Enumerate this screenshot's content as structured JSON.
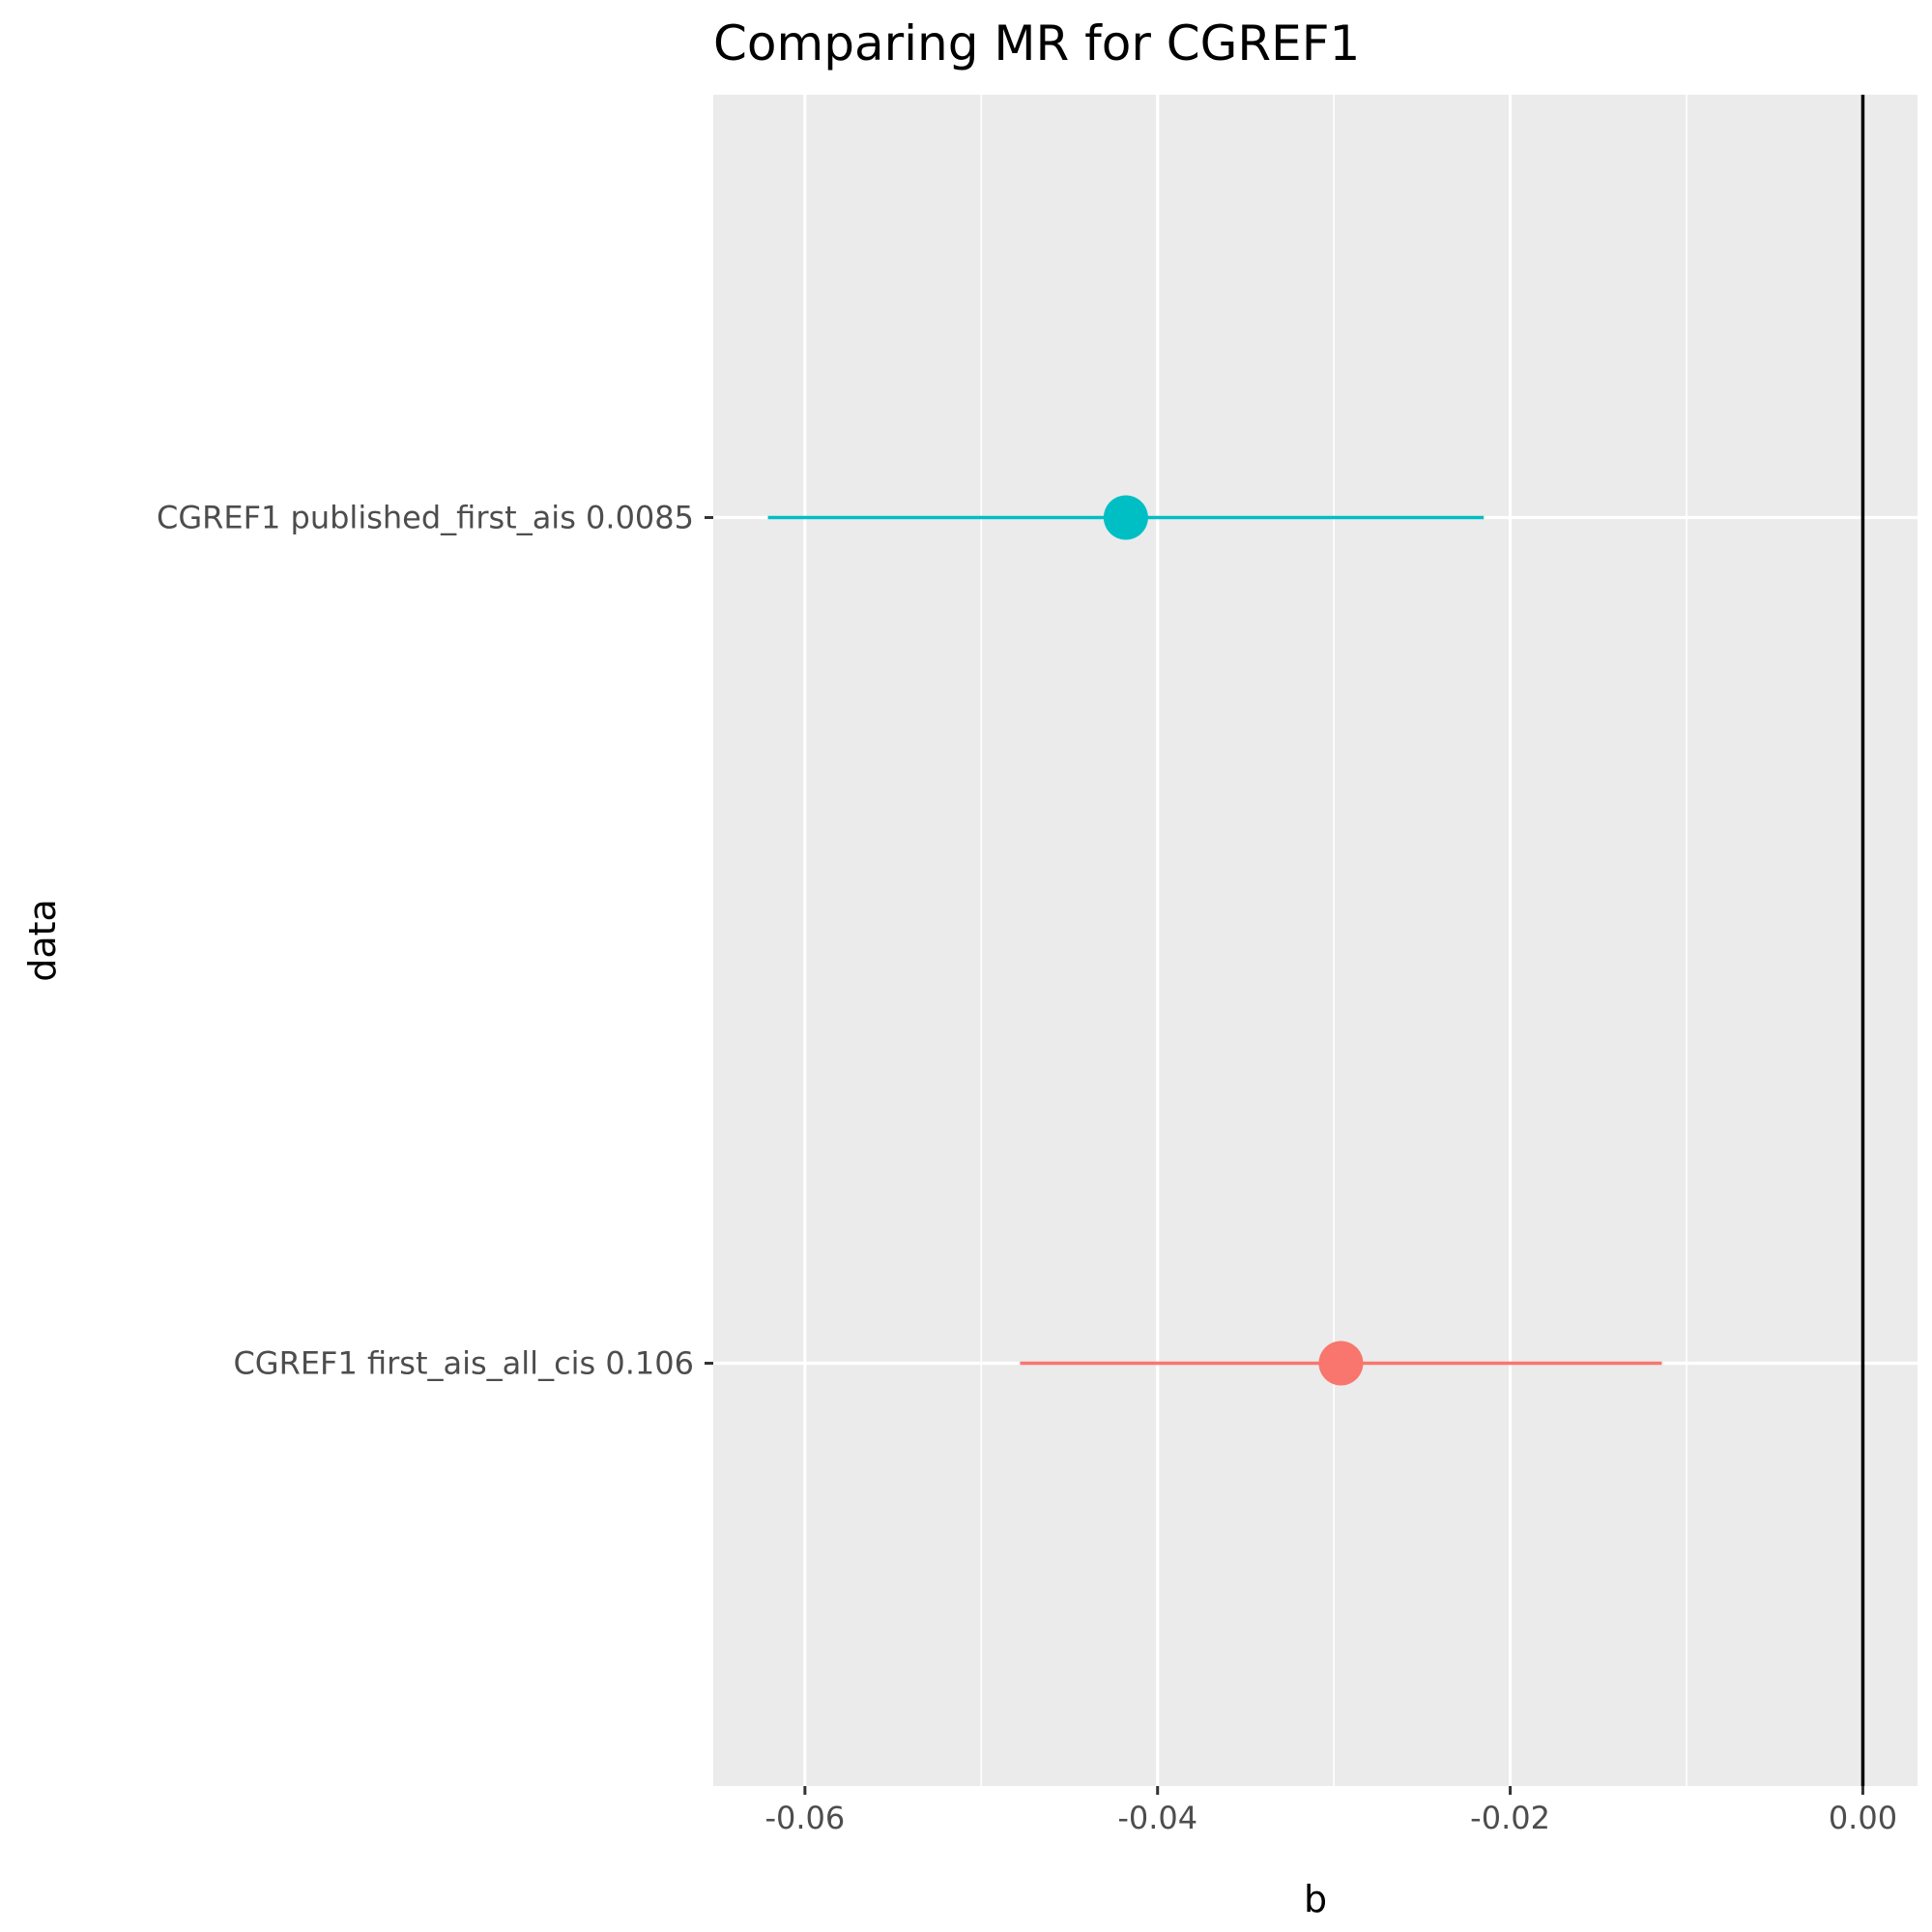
{
  "chart_data": {
    "type": "forest",
    "title": "Comparing MR for CGREF1",
    "xlabel": "b",
    "ylabel": "data",
    "xlim": [
      -0.0652,
      0.0031
    ],
    "x_ticks": [
      -0.06,
      -0.04,
      -0.02,
      0.0
    ],
    "x_tick_labels": [
      "-0.06",
      "-0.04",
      "-0.02",
      "0.00"
    ],
    "reference_line": 0,
    "grid": true,
    "points": [
      {
        "label": "CGREF1 published_first_ais 0.0085",
        "b": -0.0418,
        "lo": -0.0621,
        "hi": -0.0215,
        "color": "#00BFC4"
      },
      {
        "label": "CGREF1 first_ais_all_cis 0.106",
        "b": -0.0296,
        "lo": -0.0478,
        "hi": -0.0114,
        "color": "#F8766D"
      }
    ]
  }
}
